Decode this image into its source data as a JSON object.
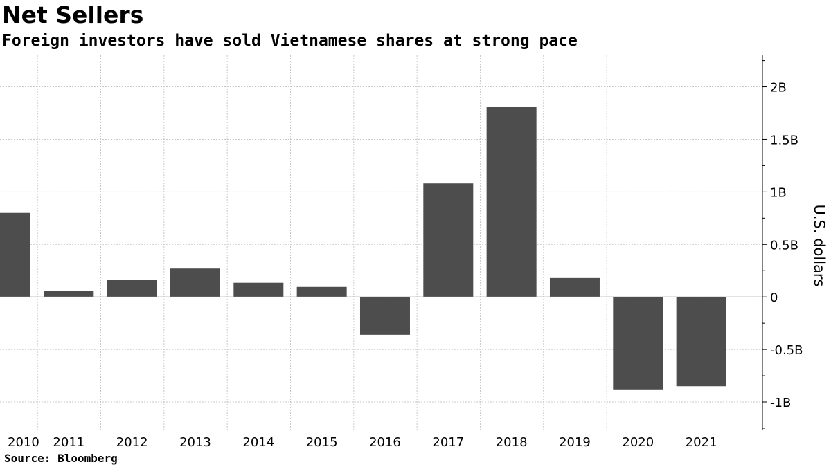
{
  "header": {
    "title": "Net Sellers",
    "subtitle": "Foreign investors have sold Vietnamese shares at strong pace"
  },
  "footer": {
    "source": "Source: Bloomberg"
  },
  "colors": {
    "bar": "#4d4d4d",
    "grid": "#c8c8c8",
    "axis": "#000000"
  },
  "chart_data": {
    "type": "bar",
    "title": "Net Sellers",
    "subtitle": "Foreign investors have sold Vietnamese shares at strong pace",
    "xlabel": "",
    "ylabel": "U.S. dollars",
    "categories": [
      "2010",
      "2011",
      "2012",
      "2013",
      "2014",
      "2015",
      "2016",
      "2017",
      "2018",
      "2019",
      "2020",
      "2021"
    ],
    "values": [
      800000000,
      60000000,
      160000000,
      270000000,
      135000000,
      95000000,
      -360000000,
      1080000000,
      1810000000,
      180000000,
      -880000000,
      -850000000
    ],
    "ylim": [
      -1270000000,
      2300000000
    ],
    "yticks": [
      2000000000,
      1500000000,
      1000000000,
      500000000,
      0,
      -500000000,
      -1000000000
    ],
    "ytick_labels": [
      "2B",
      "1.5B",
      "1B",
      "0.5B",
      "0",
      "-0.5B",
      "-1B"
    ],
    "grid": true,
    "y_axis_side": "right",
    "legend": "none",
    "source": "Source: Bloomberg"
  }
}
